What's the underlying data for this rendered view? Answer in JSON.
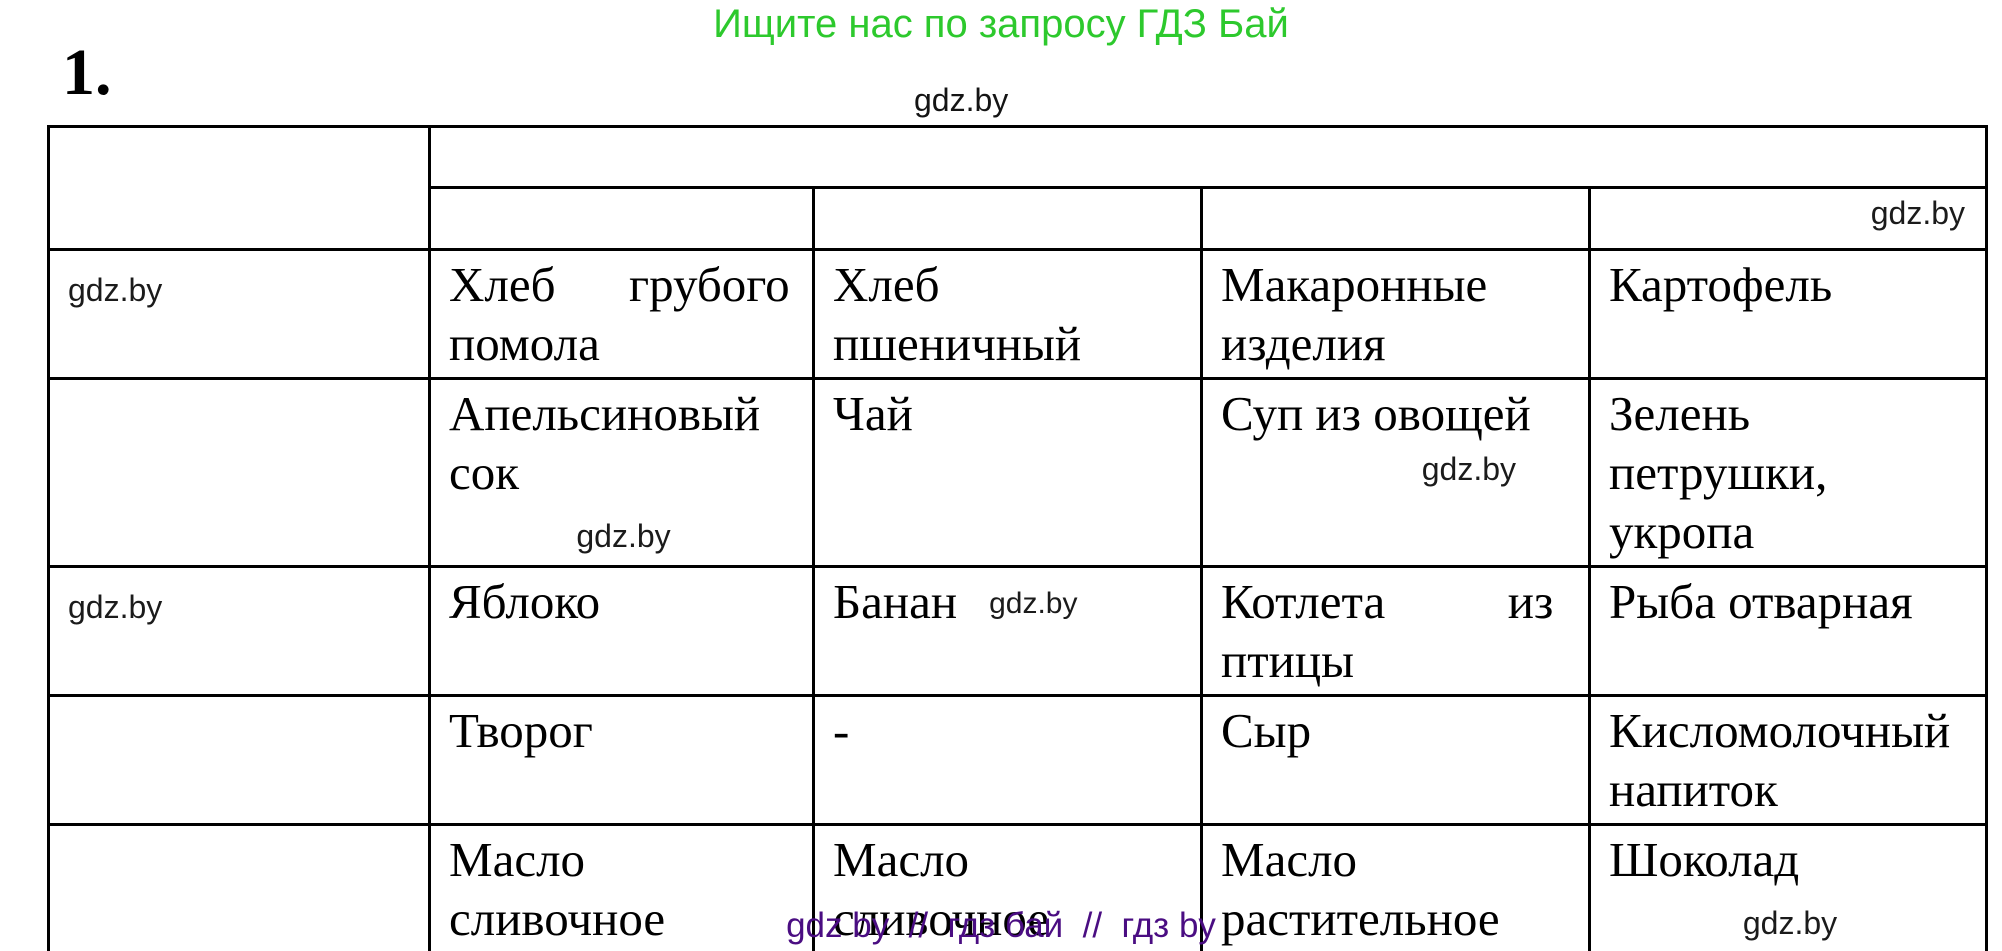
{
  "page": {
    "top_banner": "Ищите нас по запросу ГДЗ Бай",
    "exercise_number": "1.",
    "watermark_top": "gdz.by",
    "footer": "gdz by  //  гдз бай  //  гдз by",
    "colors": {
      "banner_green": "#2dc92d",
      "footer_purple": "#4a0d82",
      "watermark_gray": "#1b1b1b"
    }
  },
  "table": {
    "header": {
      "corner": "",
      "merged": "",
      "subheaders": [
        "",
        "",
        "",
        ""
      ],
      "subheader_watermark": "gdz.by"
    },
    "rows": [
      {
        "row_label_watermark": "gdz.by",
        "cells": [
          {
            "text": "Хлеб      грубого\nпомола"
          },
          {
            "text": "Хлеб\nпшеничный"
          },
          {
            "text": "Макаронные\nизделия"
          },
          {
            "text": "Картофель"
          }
        ]
      },
      {
        "row_label_watermark": "",
        "cells": [
          {
            "text": "Апельсиновый\nсок",
            "watermark": "gdz.by",
            "watermark_pos": "below-center"
          },
          {
            "text": "Чай"
          },
          {
            "text": "Суп из овощей",
            "watermark": "gdz.by",
            "watermark_pos": "below-right"
          },
          {
            "text": "Зелень\nпетрушки,\nукропа"
          }
        ]
      },
      {
        "row_label_watermark": "gdz.by",
        "cells": [
          {
            "text": "Яблоко"
          },
          {
            "text": "Банан",
            "watermark": "gdz.by",
            "watermark_pos": "inline"
          },
          {
            "text": "Котлета          из\nптицы"
          },
          {
            "text": "Рыба отварная"
          }
        ]
      },
      {
        "row_label_watermark": "",
        "cells": [
          {
            "text": "Творог"
          },
          {
            "text": "-"
          },
          {
            "text": "Сыр"
          },
          {
            "text": "Кисломолочный\nнапиток"
          }
        ]
      },
      {
        "row_label_watermark": "",
        "cells": [
          {
            "text": "Масло\nсливочное"
          },
          {
            "text": "Масло\nсливочное"
          },
          {
            "text": "Масло\nрастительное"
          },
          {
            "text": "Шоколад",
            "watermark": "gdz.by",
            "watermark_pos": "below-center"
          }
        ]
      }
    ]
  }
}
